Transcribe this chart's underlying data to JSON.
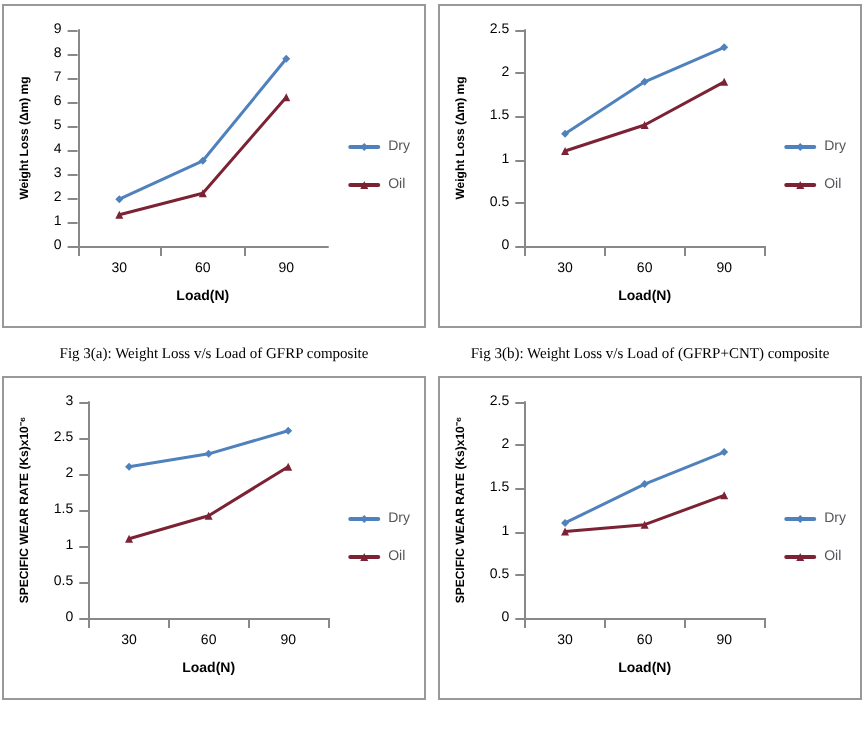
{
  "chart_data": [
    {
      "type": "line",
      "xlabel": "Load(N)",
      "ylabel": "Weight Loss (Δm) mg",
      "categories": [
        "30",
        "60",
        "90"
      ],
      "ylim": [
        0,
        9
      ],
      "yticks": [
        0,
        1,
        2,
        3,
        4,
        5,
        6,
        7,
        8,
        9
      ],
      "legend": "right",
      "grid": false,
      "annotations": [
        "Fig 3(a): Weight Loss v/s Load of GFRP composite"
      ],
      "series": [
        {
          "name": "Dry",
          "color": "#4f81bd",
          "marker": "diamond",
          "values": [
            1.95,
            3.55,
            7.8
          ]
        },
        {
          "name": "Oil",
          "color": "#7b2335",
          "marker": "triangle",
          "values": [
            1.3,
            2.2,
            6.2
          ]
        }
      ]
    },
    {
      "type": "line",
      "xlabel": "Load(N)",
      "ylabel": "Weight Loss (Δm) mg",
      "categories": [
        "30",
        "60",
        "90"
      ],
      "ylim": [
        0,
        2.5
      ],
      "yticks": [
        0,
        0.5,
        1,
        1.5,
        2,
        2.5
      ],
      "legend": "right",
      "grid": false,
      "annotations": [
        "Fig 3(b): Weight Loss v/s Load of (GFRP+CNT) composite"
      ],
      "series": [
        {
          "name": "Dry",
          "color": "#4f81bd",
          "marker": "diamond",
          "values": [
            1.3,
            1.9,
            2.3
          ]
        },
        {
          "name": "Oil",
          "color": "#7b2335",
          "marker": "triangle",
          "values": [
            1.1,
            1.4,
            1.9
          ]
        }
      ]
    },
    {
      "type": "line",
      "xlabel": "Load(N)",
      "ylabel": "SPECIFIC WEAR RATE (Ks)x10⁻⁶",
      "categories": [
        "30",
        "60",
        "90"
      ],
      "ylim": [
        0,
        3
      ],
      "yticks": [
        0,
        0.5,
        1,
        1.5,
        2,
        2.5,
        3
      ],
      "legend": "right",
      "grid": false,
      "series": [
        {
          "name": "Dry",
          "color": "#4f81bd",
          "marker": "diamond",
          "values": [
            2.1,
            2.28,
            2.6
          ]
        },
        {
          "name": "Oil",
          "color": "#7b2335",
          "marker": "triangle",
          "values": [
            1.1,
            1.42,
            2.1
          ]
        }
      ]
    },
    {
      "type": "line",
      "xlabel": "Load(N)",
      "ylabel": "SPECIFIC WEAR RATE (Ks)x10⁻⁶",
      "categories": [
        "30",
        "60",
        "90"
      ],
      "ylim": [
        0,
        2.5
      ],
      "yticks": [
        0,
        0.5,
        1,
        1.5,
        2,
        2.5
      ],
      "legend": "right",
      "grid": false,
      "series": [
        {
          "name": "Dry",
          "color": "#4f81bd",
          "marker": "diamond",
          "values": [
            1.1,
            1.55,
            1.92
          ]
        },
        {
          "name": "Oil",
          "color": "#7b2335",
          "marker": "triangle",
          "values": [
            1.0,
            1.08,
            1.42
          ]
        }
      ]
    }
  ]
}
